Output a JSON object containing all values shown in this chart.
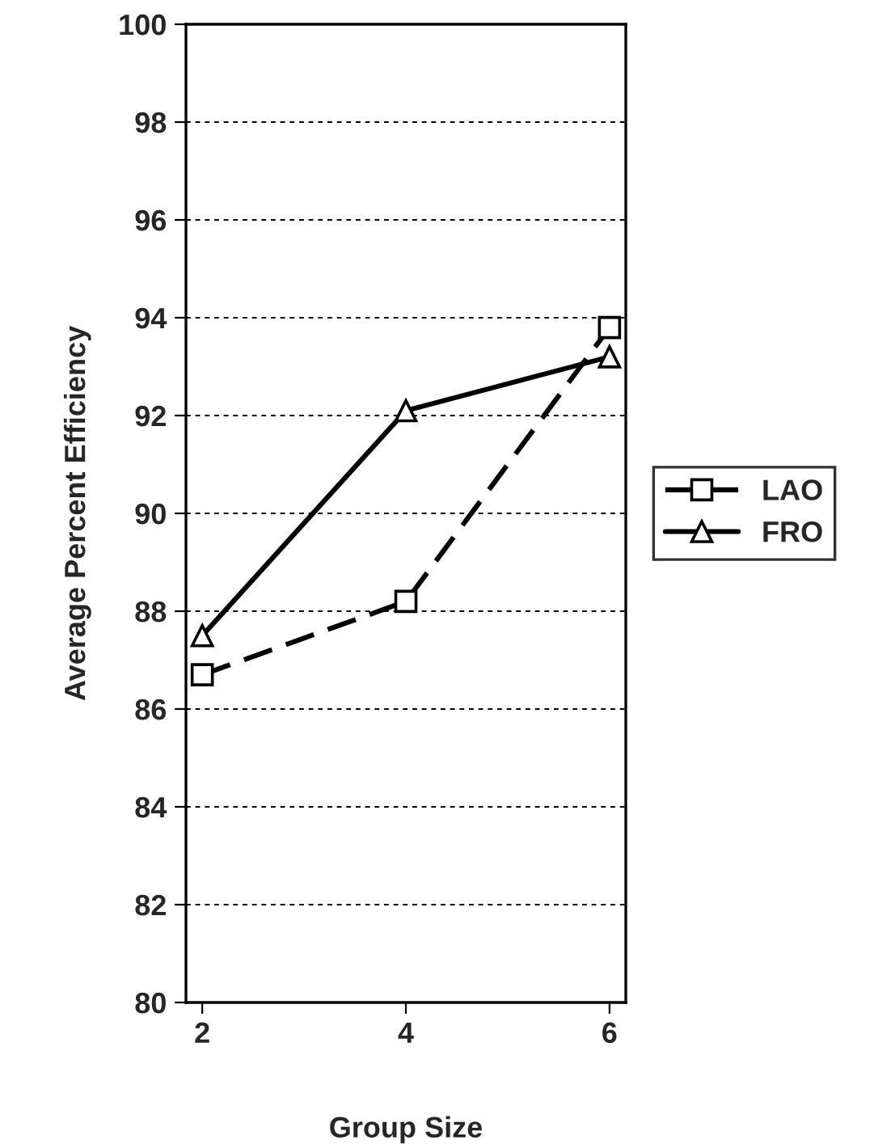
{
  "chart_data": {
    "type": "line",
    "xlabel": "Group Size",
    "ylabel": "Average Percent Efficiency",
    "categories": [
      "2",
      "4",
      "6"
    ],
    "series": [
      {
        "name": "LAO",
        "color": "#000000",
        "values": [
          86.7,
          88.2,
          93.8
        ],
        "marker": "square",
        "line_style": "dashed"
      },
      {
        "name": "FRO",
        "color": "#000000",
        "values": [
          87.5,
          92.1,
          93.2
        ],
        "marker": "triangle",
        "line_style": "solid"
      }
    ],
    "ylim": [
      80,
      100
    ],
    "yticks": [
      80,
      82,
      84,
      86,
      88,
      90,
      92,
      94,
      96,
      98,
      100
    ],
    "grid": "y",
    "legend": "right"
  }
}
